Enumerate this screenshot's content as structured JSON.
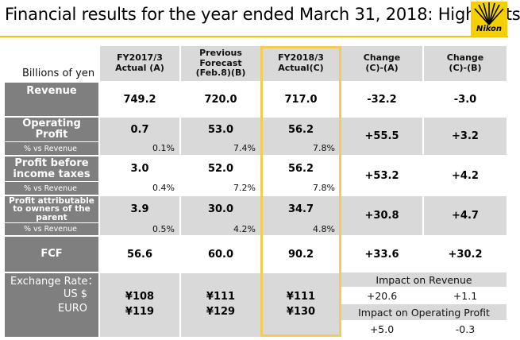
{
  "title": "Financial results for the year ended March 31, 2018: Highlights",
  "logo_text": "Nikon",
  "colors": {
    "accent": "#f2c400",
    "highlight_border": "#f2cc55",
    "label_bg": "#7f7f7f",
    "band_bg": "#d9d9d9"
  },
  "table": {
    "unit_label": "Billions of yen",
    "headers": [
      "FY2017/3\nActual (A)",
      "Previous\nForecast\n(Feb.8)(B)",
      "FY2018/3\nActual(C)",
      "Change\n(C)-(A)",
      "Change\n(C)-(B)"
    ],
    "rows": [
      {
        "label": "Revenue",
        "values": [
          "749.2",
          "720.0",
          "717.0",
          "-32.2",
          "-3.0"
        ]
      },
      {
        "label": "Operating\nProfit",
        "values": [
          "0.7",
          "53.0",
          "56.2",
          "+55.5",
          "+3.2"
        ],
        "pct_label": "% vs Revenue",
        "pct": [
          "0.1%",
          "7.4%",
          "7.8%"
        ]
      },
      {
        "label": "Profit before\nincome taxes",
        "values": [
          "3.0",
          "52.0",
          "56.2",
          "+53.2",
          "+4.2"
        ],
        "pct_label": "% vs Revenue",
        "pct": [
          "0.4%",
          "7.2%",
          "7.8%"
        ]
      },
      {
        "label": "Profit attributable\nto owners of the\nparent",
        "values": [
          "3.9",
          "30.0",
          "34.7",
          "+30.8",
          "+4.7"
        ],
        "pct_label": "% vs Revenue",
        "pct": [
          "0.5%",
          "4.2%",
          "4.8%"
        ]
      },
      {
        "label": "FCF",
        "values": [
          "56.6",
          "60.0",
          "90.2",
          "+33.6",
          "+30.2"
        ]
      }
    ]
  },
  "exchange": {
    "label": "Exchange Rate：",
    "usd_label": "US $",
    "euro_label": "EURO",
    "usd": [
      "¥108",
      "¥111",
      "¥111"
    ],
    "euro": [
      "¥119",
      "¥129",
      "¥130"
    ],
    "impact_revenue_label": "Impact on Revenue",
    "impact_revenue": [
      "+20.6",
      "+1.1"
    ],
    "impact_op_label": "Impact on Operating Profit",
    "impact_op": [
      "+5.0",
      "-0.3"
    ]
  }
}
